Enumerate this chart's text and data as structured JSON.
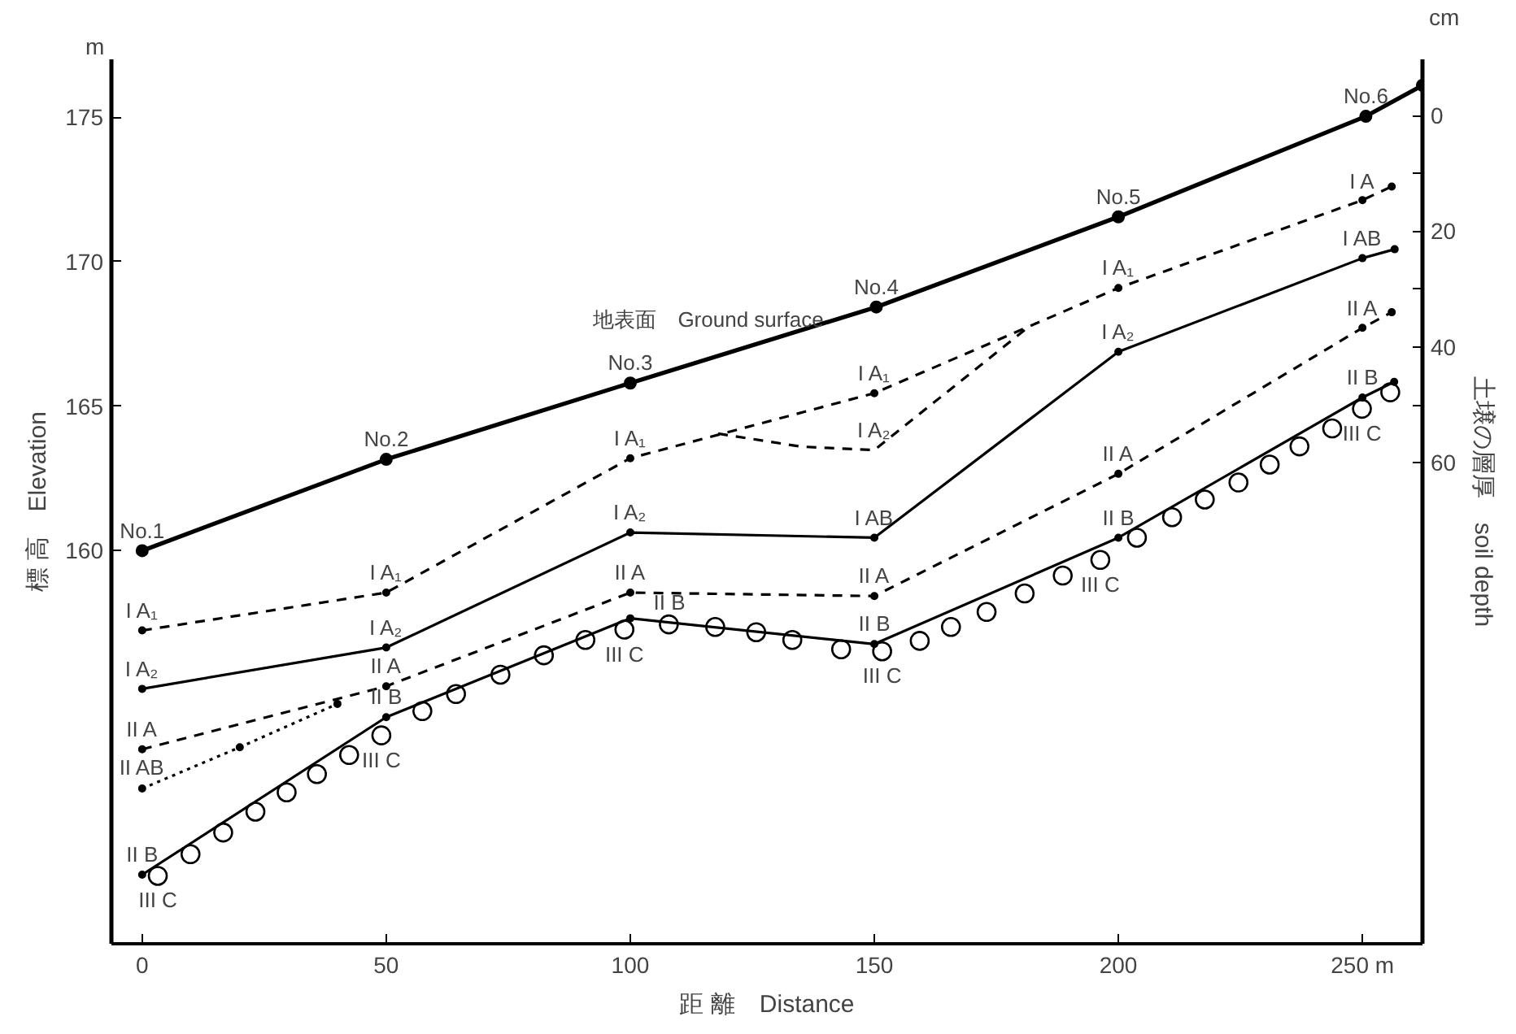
{
  "chart_data": {
    "type": "line",
    "xlabel": "距 離　Distance",
    "ylabel": "標 高　Elevation",
    "y2label": "土壌の層厚　soil depth",
    "xlim": [
      -6.3,
      262.3
    ],
    "ylim": [
      146.4,
      177.0
    ],
    "y2lim": [
      143.1,
      -9.7
    ],
    "xticks": [
      0,
      50,
      100,
      150,
      200,
      {
        "value": 250,
        "label": "250 m"
      }
    ],
    "yticks": [
      160,
      165,
      170,
      175
    ],
    "y2ticks": [
      0,
      {
        "value": 10,
        "label": null
      },
      20,
      {
        "value": 30,
        "label": null
      },
      40,
      {
        "value": 50,
        "label": null
      },
      60
    ],
    "grid": false,
    "series": [
      {
        "color": "#000000",
        "line_style": "solid",
        "marker": "circle",
        "x": [
          0,
          50,
          100,
          150.4,
          200,
          250.7,
          262.3
        ],
        "values": [
          160.0,
          163.16,
          165.8,
          168.43,
          171.55,
          175.03,
          176.1
        ]
      },
      {
        "color": "#000000",
        "line_style": "dashed",
        "marker": "circle",
        "x": [
          0,
          50,
          100,
          150,
          200,
          250,
          256
        ],
        "values": [
          157.24,
          158.55,
          163.2,
          165.45,
          169.09,
          172.13,
          172.6
        ]
      },
      {
        "color": "#000000",
        "line_style": "dashed",
        "marker": "none",
        "x": [
          118,
          135,
          150,
          182
        ],
        "values": [
          164.05,
          163.6,
          163.48,
          167.8
        ]
      },
      {
        "color": "#000000",
        "line_style": "solid",
        "marker": "circle",
        "x": [
          0,
          50,
          100,
          150,
          200,
          250,
          256.6
        ],
        "values": [
          155.22,
          156.65,
          160.63,
          160.45,
          166.88,
          170.12,
          170.43
        ]
      },
      {
        "color": "#000000",
        "line_style": "dashed",
        "marker": "circle",
        "x": [
          0,
          50,
          100,
          150,
          200,
          250,
          256
        ],
        "values": [
          153.13,
          155.31,
          158.55,
          158.43,
          162.66,
          167.71,
          168.25
        ]
      },
      {
        "color": "#000000",
        "line_style": "dotted",
        "marker": "circle",
        "x": [
          0,
          20,
          40
        ],
        "values": [
          151.77,
          153.2,
          154.7
        ]
      },
      {
        "color": "#000000",
        "line_style": "solid",
        "marker": "circle",
        "x": [
          0,
          50,
          100,
          150,
          200,
          250,
          256.5
        ],
        "values": [
          148.79,
          154.24,
          157.66,
          156.77,
          160.45,
          165.3,
          165.84
        ]
      },
      {
        "type": "scatter",
        "color": "#000000",
        "marker": "circle",
        "x": [
          3.2,
          9.9,
          16.6,
          23.2,
          29.6,
          35.8,
          42.4,
          49.0,
          57.4,
          64.3,
          73.4,
          82.3,
          90.8,
          98.8,
          107.9,
          117.4,
          125.8,
          133.2,
          143.2,
          151.6,
          159.3,
          165.7,
          173.0,
          180.8,
          188.6,
          196.3,
          203.8,
          211.0,
          217.7,
          224.6,
          231.0,
          237.1,
          243.8,
          249.9,
          255.7
        ],
        "values": [
          148.75,
          149.5,
          150.25,
          150.97,
          151.64,
          152.27,
          152.93,
          153.61,
          154.45,
          155.04,
          155.71,
          156.38,
          156.91,
          157.27,
          157.45,
          157.36,
          157.18,
          156.91,
          156.59,
          156.52,
          156.88,
          157.36,
          157.88,
          158.52,
          159.14,
          159.68,
          160.45,
          161.16,
          161.77,
          162.36,
          162.98,
          163.61,
          164.23,
          164.91,
          165.48
        ]
      }
    ],
    "annotations": [
      "m",
      "cm",
      {
        "text": "地表面　Ground surface",
        "x": 116,
        "y": 166.63
      },
      {
        "text": "No.1",
        "x": 0,
        "y": 160.0
      },
      {
        "text": "No.2",
        "x": 50,
        "y": 163.16
      },
      {
        "text": "No.3",
        "x": 100,
        "y": 165.8
      },
      {
        "text": "No.4",
        "x": 150.4,
        "y": 168.43
      },
      {
        "text": "No.5",
        "x": 200,
        "y": 171.55
      },
      {
        "text": "No.6",
        "x": 250.7,
        "y": 175.03
      },
      {
        "text": "I A₁",
        "x": 0,
        "y": 157.24
      },
      {
        "text": "I A₂",
        "x": 0,
        "y": 155.22
      },
      {
        "text": "II A",
        "x": 0,
        "y": 153.13
      },
      {
        "text": "II AB",
        "x": 0,
        "y": 151.77
      },
      {
        "text": "II B",
        "x": 0,
        "y": 148.79
      },
      {
        "text": "III C",
        "x": 3.2,
        "y": 148.75
      },
      {
        "text": "I A₁",
        "x": 50,
        "y": 158.55
      },
      {
        "text": "I A₂",
        "x": 50,
        "y": 156.65
      },
      {
        "text": "II A",
        "x": 50,
        "y": 155.31
      },
      {
        "text": "II B",
        "x": 50,
        "y": 154.24
      },
      {
        "text": "III C",
        "x": 49.0,
        "y": 153.61
      },
      {
        "text": "I A₁",
        "x": 100,
        "y": 163.2
      },
      {
        "text": "I A₂",
        "x": 100,
        "y": 160.63
      },
      {
        "text": "II A",
        "x": 100,
        "y": 158.55
      },
      {
        "text": "II B",
        "x": 108,
        "y": 157.52
      },
      {
        "text": "III C",
        "x": 98.8,
        "y": 157.27
      },
      {
        "text": "I A₁",
        "x": 150,
        "y": 165.45
      },
      {
        "text": "I A₂",
        "x": 150,
        "y": 163.48
      },
      {
        "text": "I AB",
        "x": 150,
        "y": 160.45
      },
      {
        "text": "II A",
        "x": 150,
        "y": 158.43
      },
      {
        "text": "II B",
        "x": 150,
        "y": 156.77
      },
      {
        "text": "III C",
        "x": 151.6,
        "y": 156.52
      },
      {
        "text": "I A₁",
        "x": 200,
        "y": 169.09
      },
      {
        "text": "I A₂",
        "x": 200,
        "y": 166.88
      },
      {
        "text": "II A",
        "x": 200,
        "y": 162.66
      },
      {
        "text": "II B",
        "x": 200,
        "y": 160.45
      },
      {
        "text": "III C",
        "x": 196.3,
        "y": 159.68
      },
      {
        "text": "I A",
        "x": 250,
        "y": 172.13
      },
      {
        "text": "I AB",
        "x": 250,
        "y": 170.12
      },
      {
        "text": "II A",
        "x": 250,
        "y": 167.71
      },
      {
        "text": "II B",
        "x": 250,
        "y": 165.3
      },
      {
        "text": "III C",
        "x": 249.9,
        "y": 164.91
      }
    ]
  }
}
